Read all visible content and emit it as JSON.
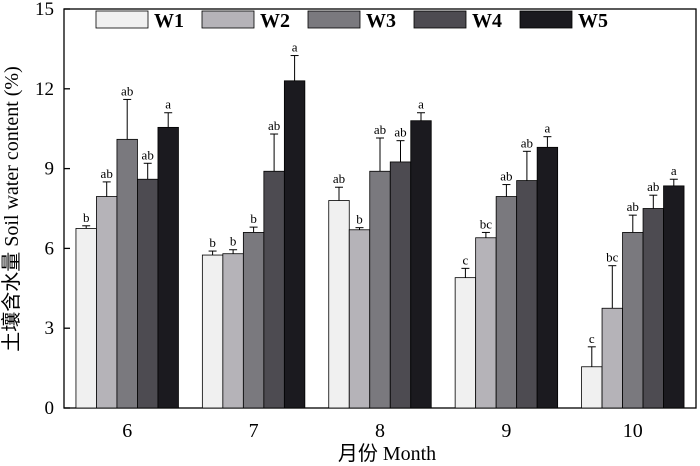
{
  "chart_data": {
    "type": "bar",
    "title": "",
    "xlabel": "月份 Month",
    "ylabel": "土壤含水量 Soil water content (%)",
    "ylim": [
      0,
      15
    ],
    "yticks": [
      "0",
      "3",
      "6",
      "9",
      "12",
      "15"
    ],
    "grid": false,
    "legend_position": "top",
    "categories": [
      "6",
      "7",
      "8",
      "9",
      "10"
    ],
    "series": [
      {
        "name": "W1",
        "color": "#f0f0f0",
        "values": [
          6.75,
          5.75,
          7.8,
          4.9,
          1.55
        ],
        "errors": [
          0.1,
          0.15,
          0.5,
          0.35,
          0.75
        ],
        "labels": [
          "b",
          "b",
          "ab",
          "c",
          "c"
        ]
      },
      {
        "name": "W2",
        "color": "#b5b3b8",
        "values": [
          7.95,
          5.8,
          6.7,
          6.4,
          3.75
        ],
        "errors": [
          0.55,
          0.15,
          0.08,
          0.2,
          1.6
        ],
        "labels": [
          "ab",
          "b",
          "b",
          "bc",
          "bc"
        ]
      },
      {
        "name": "W3",
        "color": "#7a797e",
        "values": [
          10.1,
          6.6,
          8.9,
          7.95,
          6.6
        ],
        "errors": [
          1.5,
          0.2,
          1.25,
          0.45,
          0.65
        ],
        "labels": [
          "ab",
          "b",
          "ab",
          "ab",
          "ab"
        ]
      },
      {
        "name": "W4",
        "color": "#4d4b51",
        "values": [
          8.6,
          8.9,
          9.25,
          8.55,
          7.5
        ],
        "errors": [
          0.6,
          1.4,
          0.8,
          1.1,
          0.5
        ],
        "labels": [
          "ab",
          "ab",
          "ab",
          "ab",
          "ab"
        ]
      },
      {
        "name": "W5",
        "color": "#1b1a1f",
        "values": [
          10.55,
          12.3,
          10.8,
          9.8,
          8.35
        ],
        "errors": [
          0.55,
          0.95,
          0.3,
          0.4,
          0.25
        ],
        "labels": [
          "a",
          "a",
          "a",
          "a",
          "a"
        ]
      }
    ]
  }
}
